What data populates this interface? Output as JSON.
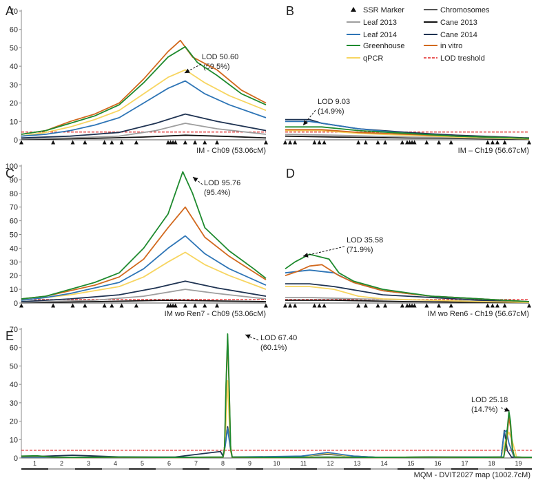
{
  "colors": {
    "leaf2013": "#9e9e9e",
    "leaf2014": "#2e75b6",
    "greenhouse": "#1e8a2e",
    "qpcr": "#f7d560",
    "chromosomes": "#555555",
    "cane2013": "#111111",
    "cane2014": "#1f3352",
    "invitro": "#d2691e",
    "threshold": "#e02020",
    "marker": "#111111"
  },
  "legend": [
    {
      "key": "marker",
      "label": "SSR Marker",
      "kind": "triangle"
    },
    {
      "key": "chromosomes",
      "label": "Chromosomes",
      "kind": "line"
    },
    {
      "key": "leaf2013",
      "label": "Leaf 2013",
      "kind": "line"
    },
    {
      "key": "cane2013",
      "label": "Cane 2013",
      "kind": "line"
    },
    {
      "key": "leaf2014",
      "label": "Leaf 2014",
      "kind": "line"
    },
    {
      "key": "cane2014",
      "label": "Cane 2014",
      "kind": "line"
    },
    {
      "key": "greenhouse",
      "label": "Greenhouse",
      "kind": "line"
    },
    {
      "key": "invitro",
      "label": "in vitro",
      "kind": "line"
    },
    {
      "key": "qpcr",
      "label": "qPCR",
      "kind": "line"
    },
    {
      "key": "threshold",
      "label": "LOD treshold",
      "kind": "dash"
    }
  ],
  "chart_data": [
    {
      "id": "A",
      "panel_label": "A",
      "type": "line",
      "xlabel": "IM - Ch09 (53.06cM)",
      "ylim": [
        0,
        70
      ],
      "yticks": [
        0,
        10,
        20,
        30,
        40,
        50,
        60,
        70
      ],
      "threshold": 4.2,
      "annotation": {
        "line1": "LOD 50.60",
        "line2": "(59.5%)"
      },
      "marker_positions": [
        0.0,
        0.13,
        0.21,
        0.26,
        0.34,
        0.37,
        0.41,
        0.47,
        0.6,
        0.61,
        0.62,
        0.63,
        0.67,
        0.71,
        0.75,
        0.8,
        1.0
      ],
      "series": [
        {
          "key": "invitro",
          "x": [
            0.0,
            0.1,
            0.2,
            0.3,
            0.4,
            0.5,
            0.6,
            0.65,
            0.7,
            0.8,
            0.9,
            1.0
          ],
          "y": [
            3,
            5,
            10,
            14,
            20,
            33,
            48,
            54,
            45,
            38,
            27,
            20
          ]
        },
        {
          "key": "greenhouse",
          "x": [
            0.0,
            0.1,
            0.2,
            0.3,
            0.4,
            0.5,
            0.6,
            0.67,
            0.72,
            0.8,
            0.9,
            1.0
          ],
          "y": [
            3,
            5,
            9,
            13,
            19,
            31,
            45,
            50.6,
            42,
            35,
            25,
            19
          ]
        },
        {
          "key": "qpcr",
          "x": [
            0.0,
            0.1,
            0.2,
            0.3,
            0.4,
            0.5,
            0.6,
            0.67,
            0.75,
            0.85,
            1.0
          ],
          "y": [
            2,
            4,
            7,
            11,
            16,
            25,
            34,
            38,
            31,
            24,
            16
          ]
        },
        {
          "key": "leaf2014",
          "x": [
            0.0,
            0.1,
            0.2,
            0.3,
            0.4,
            0.5,
            0.6,
            0.67,
            0.75,
            0.85,
            1.0
          ],
          "y": [
            2,
            3,
            5,
            8,
            12,
            20,
            28,
            32,
            25,
            19,
            12
          ]
        },
        {
          "key": "cane2014",
          "x": [
            0.0,
            0.2,
            0.4,
            0.55,
            0.67,
            0.8,
            1.0
          ],
          "y": [
            1,
            2,
            4,
            9,
            14,
            10,
            5
          ]
        },
        {
          "key": "leaf2013",
          "x": [
            0.0,
            0.2,
            0.4,
            0.55,
            0.67,
            0.8,
            1.0
          ],
          "y": [
            0.5,
            1,
            2,
            5,
            9,
            6,
            3
          ]
        },
        {
          "key": "cane2013",
          "x": [
            0.0,
            0.3,
            0.5,
            0.67,
            0.85,
            1.0
          ],
          "y": [
            0.3,
            0.8,
            1.5,
            2.5,
            1.8,
            1
          ]
        }
      ]
    },
    {
      "id": "B",
      "panel_label": "B",
      "type": "line",
      "xlabel": "IM – Ch19 (56.67cM)",
      "ylim": [
        0,
        70
      ],
      "yticks": [],
      "threshold": 4.2,
      "annotation": {
        "line1": "LOD 9.03",
        "line2": "(14.9%)"
      },
      "marker_positions": [
        0.0,
        0.02,
        0.04,
        0.12,
        0.14,
        0.16,
        0.3,
        0.33,
        0.38,
        0.41,
        0.48,
        0.5,
        0.51,
        0.52,
        0.53,
        0.58,
        0.63,
        0.68,
        0.83,
        0.85,
        0.87,
        0.9,
        1.0
      ],
      "series": [
        {
          "key": "cane2014",
          "x": [
            0.0,
            0.1,
            0.15,
            0.3,
            0.5,
            0.7,
            1.0
          ],
          "y": [
            11,
            11,
            9,
            6,
            4,
            2.5,
            1
          ]
        },
        {
          "key": "leaf2014",
          "x": [
            0.0,
            0.1,
            0.15,
            0.3,
            0.5,
            0.7,
            1.0
          ],
          "y": [
            10,
            10,
            9.03,
            6,
            3.5,
            2,
            0.8
          ]
        },
        {
          "key": "greenhouse",
          "x": [
            0.0,
            0.15,
            0.3,
            0.5,
            0.7,
            1.0
          ],
          "y": [
            7,
            7,
            5,
            3.5,
            2,
            0.8
          ]
        },
        {
          "key": "invitro",
          "x": [
            0.0,
            0.15,
            0.3,
            0.5,
            0.7,
            1.0
          ],
          "y": [
            5.5,
            5.5,
            4,
            3,
            2,
            0.8
          ]
        },
        {
          "key": "qpcr",
          "x": [
            0.0,
            0.15,
            0.3,
            0.5,
            0.7,
            1.0
          ],
          "y": [
            5,
            5,
            3.5,
            2.5,
            1.5,
            0.5
          ]
        },
        {
          "key": "leaf2013",
          "x": [
            0.0,
            0.2,
            0.5,
            1.0
          ],
          "y": [
            3,
            2.5,
            1.5,
            0.5
          ]
        },
        {
          "key": "cane2013",
          "x": [
            0.0,
            0.2,
            0.5,
            1.0
          ],
          "y": [
            2,
            1.5,
            1,
            0.3
          ]
        }
      ]
    },
    {
      "id": "C",
      "panel_label": "C",
      "type": "line",
      "xlabel": "IM wo Ren7 - Ch09 (53.06cM)",
      "ylim": [
        0,
        100
      ],
      "yticks": [
        0,
        10,
        20,
        30,
        40,
        50,
        60,
        70,
        80,
        90,
        100
      ],
      "threshold": 2.5,
      "annotation": {
        "line1": "LOD 95.76",
        "line2": "(95.4%)"
      },
      "marker_positions": [
        0.0,
        0.13,
        0.21,
        0.26,
        0.34,
        0.37,
        0.41,
        0.47,
        0.6,
        0.61,
        0.62,
        0.63,
        0.67,
        0.71,
        0.75,
        0.8,
        1.0
      ],
      "series": [
        {
          "key": "greenhouse",
          "x": [
            0.0,
            0.1,
            0.2,
            0.3,
            0.4,
            0.5,
            0.6,
            0.66,
            0.7,
            0.75,
            0.85,
            0.95,
            1.0
          ],
          "y": [
            3,
            5,
            10,
            15,
            22,
            40,
            65,
            95.76,
            80,
            55,
            38,
            25,
            18
          ]
        },
        {
          "key": "invitro",
          "x": [
            0.0,
            0.1,
            0.2,
            0.3,
            0.4,
            0.5,
            0.6,
            0.67,
            0.75,
            0.85,
            1.0
          ],
          "y": [
            3,
            5,
            9,
            13,
            19,
            32,
            55,
            70,
            48,
            34,
            17
          ]
        },
        {
          "key": "leaf2014",
          "x": [
            0.0,
            0.1,
            0.2,
            0.3,
            0.4,
            0.5,
            0.6,
            0.67,
            0.75,
            0.85,
            1.0
          ],
          "y": [
            2,
            4,
            7,
            11,
            15,
            25,
            40,
            49,
            36,
            25,
            13
          ]
        },
        {
          "key": "qpcr",
          "x": [
            0.0,
            0.1,
            0.2,
            0.3,
            0.4,
            0.5,
            0.6,
            0.67,
            0.75,
            0.85,
            1.0
          ],
          "y": [
            2,
            4,
            6,
            9,
            12,
            19,
            30,
            37,
            28,
            20,
            10
          ]
        },
        {
          "key": "cane2014",
          "x": [
            0.0,
            0.2,
            0.4,
            0.55,
            0.67,
            0.8,
            1.0
          ],
          "y": [
            1,
            3,
            6,
            11,
            16,
            11,
            5
          ]
        },
        {
          "key": "leaf2013",
          "x": [
            0.0,
            0.3,
            0.5,
            0.67,
            0.8,
            1.0
          ],
          "y": [
            0.5,
            2,
            5,
            10,
            7,
            3
          ]
        },
        {
          "key": "cane2013",
          "x": [
            0.0,
            0.3,
            0.6,
            0.8,
            1.0
          ],
          "y": [
            0.3,
            1,
            2,
            1.5,
            1
          ]
        }
      ]
    },
    {
      "id": "D",
      "panel_label": "D",
      "type": "line",
      "xlabel": "IM wo Ren6 - Ch19 (56.67cM)",
      "ylim": [
        0,
        100
      ],
      "yticks": [],
      "threshold": 2.5,
      "annotation": {
        "line1": "LOD 35.58",
        "line2": "(71.9%)"
      },
      "marker_positions": [
        0.0,
        0.02,
        0.04,
        0.12,
        0.14,
        0.16,
        0.3,
        0.33,
        0.38,
        0.41,
        0.48,
        0.5,
        0.51,
        0.52,
        0.53,
        0.58,
        0.63,
        0.68,
        0.83,
        0.85,
        0.87,
        0.9,
        1.0
      ],
      "series": [
        {
          "key": "greenhouse",
          "x": [
            0.0,
            0.04,
            0.1,
            0.18,
            0.22,
            0.28,
            0.4,
            0.6,
            0.8,
            1.0
          ],
          "y": [
            25,
            30,
            35.58,
            32,
            22,
            16,
            10,
            5,
            3,
            1
          ]
        },
        {
          "key": "invitro",
          "x": [
            0.0,
            0.05,
            0.1,
            0.15,
            0.22,
            0.28,
            0.4,
            0.6,
            0.8,
            1.0
          ],
          "y": [
            20,
            23,
            27,
            28,
            20,
            15,
            9,
            5,
            3,
            1
          ]
        },
        {
          "key": "leaf2014",
          "x": [
            0.0,
            0.1,
            0.2,
            0.28,
            0.4,
            0.6,
            0.8,
            1.0
          ],
          "y": [
            22,
            24,
            22,
            15,
            9,
            5,
            3,
            1
          ]
        },
        {
          "key": "cane2014",
          "x": [
            0.0,
            0.1,
            0.2,
            0.3,
            0.4,
            0.6,
            0.8,
            1.0
          ],
          "y": [
            14,
            14,
            12,
            9,
            6,
            4,
            2,
            1
          ]
        },
        {
          "key": "qpcr",
          "x": [
            0.0,
            0.1,
            0.2,
            0.3,
            0.4,
            0.6,
            0.8,
            1.0
          ],
          "y": [
            12,
            12,
            10,
            5,
            3,
            2,
            1,
            0.5
          ]
        },
        {
          "key": "leaf2013",
          "x": [
            0.0,
            0.1,
            0.3,
            0.6,
            1.0
          ],
          "y": [
            4,
            4,
            3,
            2,
            0.5
          ]
        },
        {
          "key": "cane2013",
          "x": [
            0.0,
            0.2,
            0.5,
            1.0
          ],
          "y": [
            2,
            2,
            1,
            0.3
          ]
        }
      ]
    },
    {
      "id": "E",
      "panel_label": "E",
      "type": "line",
      "xlabel": "MQM - DVIT2027 map (1002.7cM)",
      "ylim": [
        0,
        70
      ],
      "yticks": [
        0,
        10,
        20,
        30,
        40,
        50,
        60,
        70
      ],
      "threshold": 4.2,
      "annotation": {
        "line1": "LOD 67.40",
        "line2": "(60.1%)"
      },
      "annotation2": {
        "line1": "LOD 25.18",
        "line2": "(14.7%)"
      },
      "chromosomes": [
        "1",
        "2",
        "3",
        "4",
        "5",
        "6",
        "7",
        "8",
        "9",
        "10",
        "11",
        "12",
        "13",
        "14",
        "15",
        "16",
        "17",
        "18",
        "19"
      ],
      "series": [
        {
          "key": "greenhouse",
          "x": [
            0.0,
            0.03,
            0.06,
            0.1,
            0.2,
            0.3,
            0.395,
            0.398,
            0.401,
            0.404,
            0.407,
            0.41,
            0.413,
            0.5,
            0.6,
            0.7,
            0.8,
            0.9,
            0.945,
            0.95,
            0.955,
            0.958,
            0.962,
            0.966,
            1.0
          ],
          "y": [
            1,
            1.2,
            0.5,
            0.3,
            0.5,
            0.3,
            0.5,
            5,
            40,
            67.4,
            40,
            5,
            0.5,
            0.3,
            0.5,
            0.3,
            0.5,
            0.3,
            0.5,
            10,
            25.18,
            20,
            5,
            0.5,
            0.3
          ]
        },
        {
          "key": "invitro",
          "x": [
            0.0,
            0.03,
            0.06,
            0.1,
            0.2,
            0.3,
            0.395,
            0.398,
            0.401,
            0.404,
            0.407,
            0.41,
            0.413,
            0.5,
            0.6,
            0.7,
            0.8,
            0.9,
            0.945,
            0.95,
            0.955,
            0.958,
            0.962,
            0.966,
            1.0
          ],
          "y": [
            0.8,
            1,
            0.4,
            0.2,
            0.4,
            0.2,
            0.4,
            4,
            38,
            65,
            38,
            4,
            0.4,
            0.2,
            0.4,
            0.2,
            0.4,
            0.2,
            0.4,
            8,
            22,
            17,
            4,
            0.4,
            0.2
          ]
        },
        {
          "key": "qpcr",
          "x": [
            0.0,
            0.1,
            0.2,
            0.3,
            0.395,
            0.399,
            0.404,
            0.409,
            0.413,
            0.55,
            0.6,
            0.65,
            0.7,
            0.8,
            0.94,
            0.949,
            0.955,
            0.961,
            0.97,
            1.0
          ],
          "y": [
            0.5,
            0.3,
            0.5,
            0.3,
            0.5,
            8,
            42,
            8,
            0.5,
            0.8,
            2.5,
            0.8,
            0.3,
            0.5,
            0.5,
            10,
            14,
            10,
            0.5,
            0.3
          ]
        },
        {
          "key": "leaf2014",
          "x": [
            0.0,
            0.1,
            0.2,
            0.3,
            0.395,
            0.399,
            0.404,
            0.409,
            0.413,
            0.55,
            0.6,
            0.65,
            0.7,
            0.8,
            0.94,
            0.946,
            0.95,
            0.955,
            0.965,
            1.0
          ],
          "y": [
            0.5,
            0.3,
            0.6,
            0.3,
            0.5,
            6,
            16,
            6,
            0.5,
            1,
            3,
            1,
            0.3,
            0.5,
            0.5,
            14,
            15,
            8,
            0.5,
            0.3
          ]
        },
        {
          "key": "cane2014",
          "x": [
            0.0,
            0.1,
            0.2,
            0.3,
            0.39,
            0.395,
            0.404,
            0.413,
            0.5,
            0.55,
            0.6,
            0.65,
            0.7,
            0.8,
            0.94,
            0.946,
            0.952,
            0.96,
            1.0
          ],
          "y": [
            0.5,
            1.5,
            0.5,
            0.5,
            3.5,
            1,
            17,
            0.5,
            0.3,
            1,
            2,
            1,
            0.3,
            0.5,
            0.5,
            15,
            4,
            0.5,
            0.3
          ]
        }
      ]
    }
  ]
}
